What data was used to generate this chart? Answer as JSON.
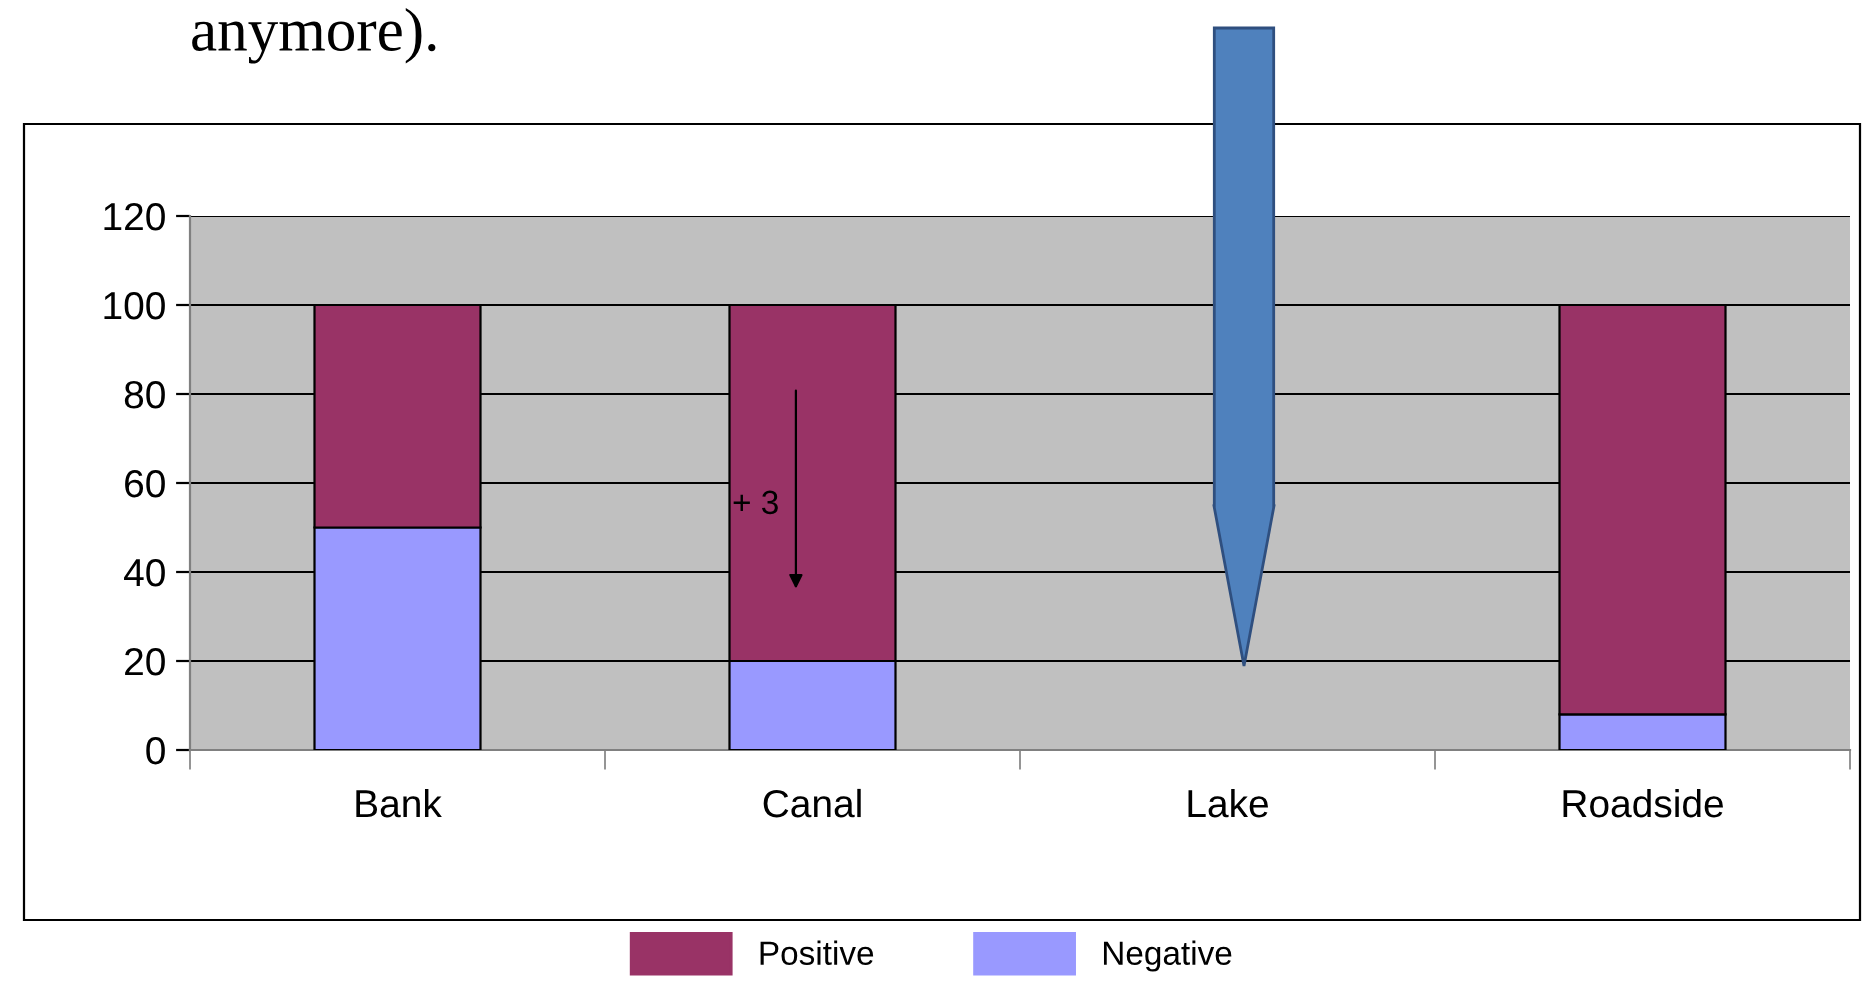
{
  "chart_data": {
    "type": "bar",
    "stacked": true,
    "categories": [
      "Bank",
      "Canal",
      "Lake",
      "Roadside"
    ],
    "series": [
      {
        "name": "Negative",
        "color": "#9999ff",
        "values": [
          50,
          20,
          0,
          8
        ]
      },
      {
        "name": "Positive",
        "color": "#993366",
        "values": [
          50,
          80,
          0,
          92
        ]
      }
    ],
    "ylim": [
      0,
      120
    ],
    "yticks": [
      0,
      20,
      40,
      60,
      80,
      100,
      120
    ],
    "grid": "y",
    "legend": "bottom",
    "annotations": [
      "anymore).",
      "+ 3"
    ]
  }
}
